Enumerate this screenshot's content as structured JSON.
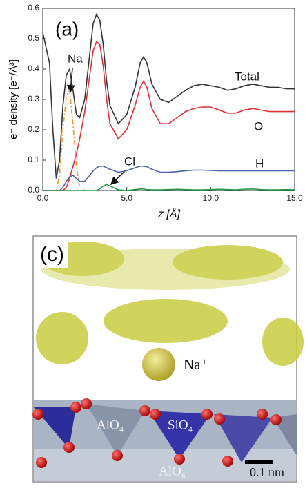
{
  "chart_data": {
    "type": "line",
    "title": "(a)",
    "x_label": "z [Å]",
    "y_label": "e⁻ density [e⁻/Å³]",
    "x": [
      0.0,
      0.4,
      0.6,
      0.8,
      1.0,
      1.2,
      1.4,
      1.6,
      1.8,
      2.0,
      2.2,
      2.5,
      2.8,
      3.0,
      3.2,
      3.4,
      3.6,
      3.8,
      4.0,
      4.5,
      5.0,
      5.5,
      5.8,
      6.0,
      6.2,
      6.5,
      7.0,
      7.5,
      8.0,
      8.5,
      9.0,
      9.5,
      10.0,
      10.5,
      11.0,
      11.5,
      12.0,
      12.5,
      13.0,
      13.5,
      14.0,
      14.5,
      15.0
    ],
    "series": [
      {
        "name": "Total",
        "color": "#333333",
        "values": [
          0.52,
          0.42,
          0.2,
          0.04,
          0.1,
          0.28,
          0.38,
          0.4,
          0.33,
          0.25,
          0.24,
          0.3,
          0.45,
          0.55,
          0.58,
          0.56,
          0.48,
          0.36,
          0.28,
          0.22,
          0.25,
          0.34,
          0.42,
          0.44,
          0.42,
          0.35,
          0.3,
          0.29,
          0.31,
          0.33,
          0.345,
          0.35,
          0.345,
          0.34,
          0.33,
          0.335,
          0.345,
          0.35,
          0.345,
          0.34,
          0.34,
          0.335,
          0.335
        ]
      },
      {
        "name": "O",
        "color": "#e03030",
        "values": [
          0,
          0,
          0,
          0,
          0,
          0,
          0.01,
          0.04,
          0.08,
          0.12,
          0.17,
          0.26,
          0.38,
          0.46,
          0.49,
          0.48,
          0.41,
          0.3,
          0.22,
          0.17,
          0.2,
          0.28,
          0.34,
          0.36,
          0.34,
          0.27,
          0.22,
          0.22,
          0.24,
          0.26,
          0.27,
          0.275,
          0.275,
          0.265,
          0.255,
          0.255,
          0.265,
          0.27,
          0.265,
          0.26,
          0.26,
          0.26,
          0.26
        ]
      },
      {
        "name": "H",
        "color": "#5060b0",
        "values": [
          0,
          0,
          0,
          0,
          0,
          0.01,
          0.03,
          0.045,
          0.05,
          0.04,
          0.03,
          0.03,
          0.05,
          0.065,
          0.075,
          0.08,
          0.08,
          0.075,
          0.07,
          0.06,
          0.065,
          0.075,
          0.08,
          0.08,
          0.078,
          0.07,
          0.06,
          0.06,
          0.062,
          0.065,
          0.067,
          0.067,
          0.066,
          0.065,
          0.065,
          0.065,
          0.065,
          0.065,
          0.065,
          0.065,
          0.065,
          0.065,
          0.065
        ]
      },
      {
        "name": "Na",
        "color": "#e89a30",
        "dashed": true,
        "values": [
          null,
          null,
          0,
          0,
          0.05,
          0.2,
          0.31,
          0.33,
          0.22,
          0.08,
          0.01,
          0,
          null,
          null,
          null,
          null,
          null,
          null,
          null,
          null,
          null,
          null,
          null,
          null,
          null,
          null,
          null,
          null,
          null,
          null,
          null,
          null,
          null,
          null,
          null,
          null,
          null,
          null,
          null,
          null,
          null,
          null,
          null
        ]
      },
      {
        "name": "Cl",
        "color": "#2a9a4a",
        "values": [
          0,
          0,
          0,
          0,
          0,
          0,
          0,
          0,
          0,
          0,
          0,
          0,
          0,
          0,
          0,
          0.005,
          0.015,
          0.02,
          0.015,
          0.002,
          0,
          0.003,
          0.005,
          0.005,
          0.003,
          0.002,
          0.002,
          0.003,
          0.004,
          0.003,
          0.002,
          0.002,
          0.003,
          0.004,
          0.003,
          0.002,
          0.004,
          0.005,
          0.003,
          0.002,
          0.002,
          0.003,
          0.002
        ]
      }
    ],
    "xlim": [
      0,
      15
    ],
    "ylim": [
      0,
      0.6
    ],
    "xticks": [
      {
        "value": 0,
        "label": "0.0"
      },
      {
        "value": 5,
        "label": "5.0"
      },
      {
        "value": 10,
        "label": "10.0"
      },
      {
        "value": 15,
        "label": "15.0"
      }
    ],
    "yticks": [
      {
        "value": 0,
        "label": "0.0"
      },
      0.1,
      0.2,
      0.3,
      0.4,
      0.5,
      0.6
    ]
  },
  "panel_c": {
    "label": "(c)",
    "ion": "Na⁺",
    "labels": [
      "AlO₄",
      "SiO₄",
      "AlO₆"
    ],
    "scale_bar": "0.1 nm"
  }
}
